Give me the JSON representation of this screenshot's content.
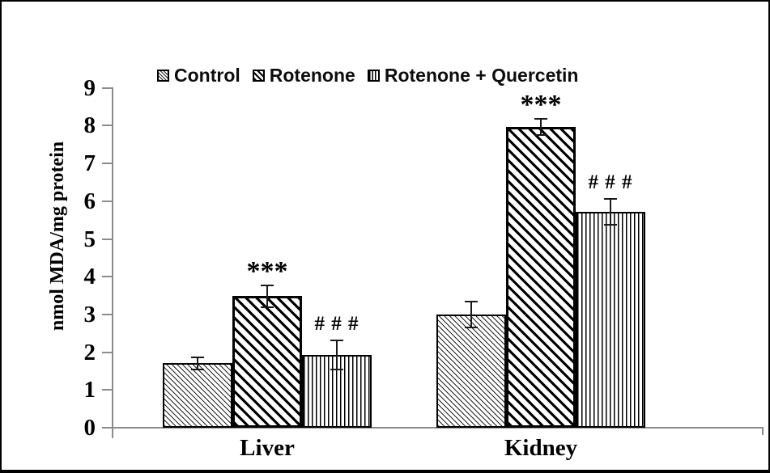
{
  "figure": {
    "background": "#ffffff",
    "frame_color": "#000000",
    "axis_color": "#8c8c8c",
    "bar_border_color": "#000000",
    "text_color": "#000000"
  },
  "chart_data": {
    "type": "bar",
    "title": "",
    "xlabel": "",
    "ylabel": "nmol MDA/mg protein",
    "ylim": [
      0,
      9
    ],
    "ytick_step": 1,
    "ytick_labels": [
      "0",
      "1",
      "2",
      "3",
      "4",
      "5",
      "6",
      "7",
      "8",
      "9"
    ],
    "grid": false,
    "legend_position": "top",
    "categories": [
      "Liver",
      "Kidney"
    ],
    "series": [
      {
        "name": "Control",
        "pattern": "diagonal-fine",
        "values": [
          1.71,
          3.0
        ],
        "errors": [
          0.16,
          0.35
        ],
        "annotations": [
          "",
          ""
        ]
      },
      {
        "name": "Rotenone",
        "pattern": "diagonal-bold",
        "values": [
          3.48,
          7.97
        ],
        "errors": [
          0.28,
          0.22
        ],
        "annotations": [
          "***",
          "***"
        ]
      },
      {
        "name": "Rotenone + Quercetin",
        "pattern": "vertical",
        "values": [
          1.93,
          5.72
        ],
        "errors": [
          0.38,
          0.35
        ],
        "annotations": [
          "# # #",
          "# # #"
        ]
      }
    ]
  }
}
